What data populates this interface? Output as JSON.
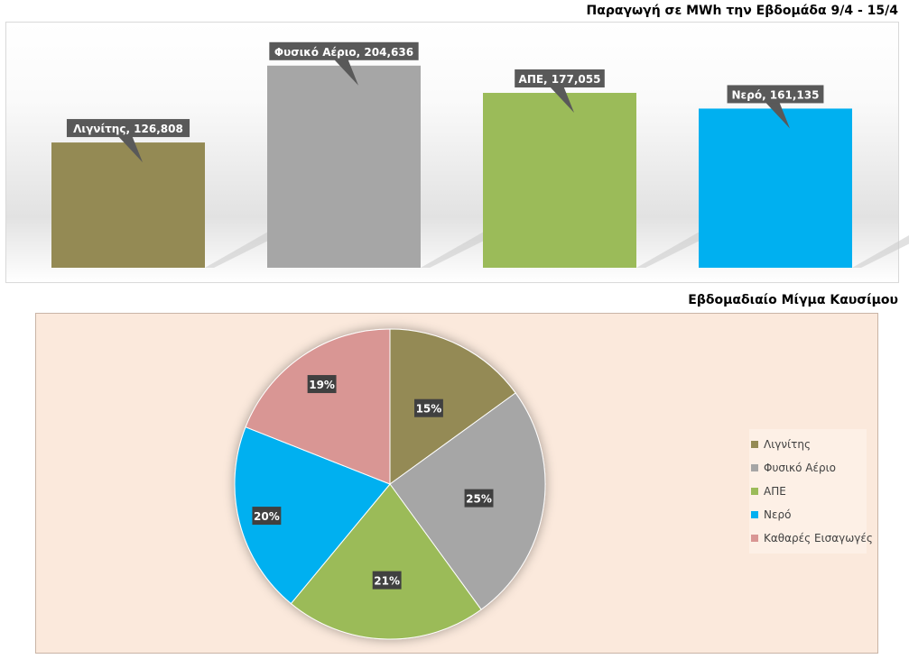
{
  "chart_data": [
    {
      "type": "bar",
      "title": "Παραγωγή σε MWh την Εβδομάδα 9/4 - 15/4",
      "categories": [
        "Λιγνίτης",
        "Φυσικό Αέριο",
        "ΑΠΕ",
        "Νερό"
      ],
      "values": [
        126808,
        204636,
        177055,
        161135
      ],
      "data_labels": [
        "Λιγνίτης, 126,808",
        "Φυσικό Αέριο, 204,636",
        "ΑΠΕ, 177,055",
        "Νερό, 161,135"
      ],
      "colors": [
        "#948a54",
        "#a6a6a6",
        "#9bbb59",
        "#00b0f0"
      ],
      "ylim": [
        0,
        230000
      ],
      "grid": false,
      "legend": "none"
    },
    {
      "type": "pie",
      "title": "Εβδομαδιαίο Μίγμα Καυσίμου",
      "categories": [
        "Λιγνίτης",
        "Φυσικό Αέριο",
        "ΑΠΕ",
        "Νερό",
        "Καθαρές Εισαγωγές"
      ],
      "values": [
        15,
        25,
        21,
        20,
        19
      ],
      "data_labels": [
        "15%",
        "25%",
        "21%",
        "20%",
        "19%"
      ],
      "colors": [
        "#948a54",
        "#a6a6a6",
        "#9bbb59",
        "#00b0f0",
        "#d99694"
      ],
      "legend": "right"
    }
  ]
}
